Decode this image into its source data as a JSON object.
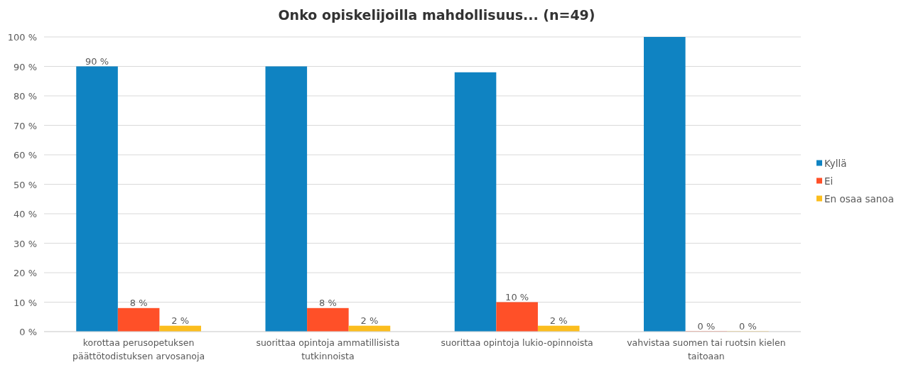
{
  "chart_data": {
    "type": "bar",
    "title": "Onko opiskelijoilla mahdollisuus... (n=49)",
    "categories": [
      "korottaa perusopetuksen päättötodistuksen arvosanoja",
      "suorittaa opintoja ammatillisista tutkinnoista",
      "suorittaa opintoja lukio-opinnoista",
      "vahvistaa suomen tai ruotsin kielen taitoaan"
    ],
    "series": [
      {
        "name": "Kyllä",
        "color": "#0f83c2",
        "values": [
          90,
          90,
          88,
          100
        ],
        "value_labels": [
          "90 %",
          null,
          null,
          null
        ]
      },
      {
        "name": "Ei",
        "color": "#ff5028",
        "values": [
          8,
          8,
          10,
          0
        ],
        "value_labels": [
          "8 %",
          "8 %",
          "10 %",
          "0 %"
        ]
      },
      {
        "name": "En osaa sanoa",
        "color": "#fbbd1e",
        "values": [
          2,
          2,
          2,
          0
        ],
        "value_labels": [
          "2 %",
          "2 %",
          "2 %",
          "0 %"
        ]
      }
    ],
    "ylim": [
      0,
      100
    ],
    "yticks": [
      {
        "value": 0,
        "label": "0 %"
      },
      {
        "value": 10,
        "label": "10 %"
      },
      {
        "value": 20,
        "label": "20 %"
      },
      {
        "value": 30,
        "label": "30 %"
      },
      {
        "value": 40,
        "label": "40 %"
      },
      {
        "value": 50,
        "label": "50 %"
      },
      {
        "value": 60,
        "label": "60 %"
      },
      {
        "value": 70,
        "label": "70 %"
      },
      {
        "value": 80,
        "label": "80 %"
      },
      {
        "value": 90,
        "label": "90 %"
      },
      {
        "value": 100,
        "label": "100 %"
      }
    ],
    "grid": "y",
    "legend": "right"
  }
}
